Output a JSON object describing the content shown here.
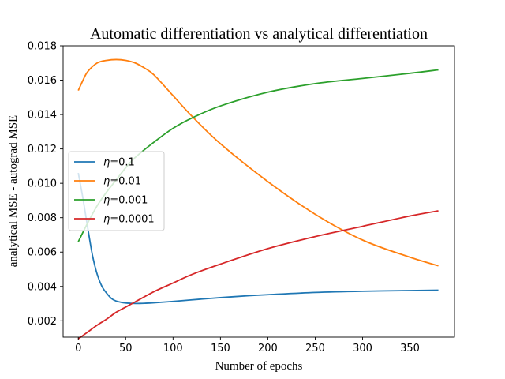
{
  "chart_data": {
    "type": "line",
    "title": "Automatic differentiation vs analytical differentiation",
    "xlabel": "Number of epochs",
    "ylabel": "analytical MSE - autograd MSE",
    "xlim": [
      -16,
      397
    ],
    "ylim": [
      0.00105,
      0.018
    ],
    "xticks": [
      0,
      50,
      100,
      150,
      200,
      250,
      300,
      350
    ],
    "xtick_labels": [
      "0",
      "50",
      "100",
      "150",
      "200",
      "250",
      "300",
      "350"
    ],
    "yticks": [
      0.002,
      0.004,
      0.006,
      0.008,
      0.01,
      0.012,
      0.014,
      0.016,
      0.018
    ],
    "ytick_labels": [
      "0.002",
      "0.004",
      "0.006",
      "0.008",
      "0.010",
      "0.012",
      "0.014",
      "0.016",
      "0.018"
    ],
    "grid": false,
    "legend_position": "center-left",
    "series": [
      {
        "name": "η=0.1",
        "eta_symbol": "η",
        "eta_value": "=0.1",
        "color": "#1f77b4",
        "x": [
          0,
          5,
          10,
          15,
          20,
          25,
          30,
          35,
          40,
          45,
          50,
          55,
          60,
          65,
          70,
          80,
          100,
          120,
          150,
          180,
          200,
          250,
          300,
          350,
          380
        ],
        "y": [
          0.0106,
          0.0091,
          0.0074,
          0.0058,
          0.0047,
          0.004,
          0.0036,
          0.0033,
          0.00315,
          0.00308,
          0.00304,
          0.00302,
          0.00301,
          0.00301,
          0.00302,
          0.00305,
          0.00313,
          0.00322,
          0.00335,
          0.00346,
          0.00352,
          0.00365,
          0.00372,
          0.00376,
          0.00378
        ]
      },
      {
        "name": "η=0.01",
        "eta_symbol": "η",
        "eta_value": "=0.01",
        "color": "#ff7f0e",
        "x": [
          0,
          5,
          10,
          20,
          30,
          40,
          50,
          60,
          70,
          80,
          100,
          120,
          150,
          200,
          250,
          300,
          350,
          380
        ],
        "y": [
          0.0154,
          0.016,
          0.0165,
          0.017,
          0.01715,
          0.0172,
          0.01715,
          0.017,
          0.0167,
          0.0163,
          0.0151,
          0.0139,
          0.0123,
          0.0101,
          0.0082,
          0.0067,
          0.0057,
          0.0052
        ]
      },
      {
        "name": "η=0.001",
        "eta_symbol": "η",
        "eta_value": "=0.001",
        "color": "#2ca02c",
        "x": [
          0,
          10,
          20,
          30,
          40,
          50,
          60,
          80,
          100,
          120,
          150,
          200,
          250,
          300,
          350,
          380
        ],
        "y": [
          0.0066,
          0.0077,
          0.0087,
          0.0095,
          0.0102,
          0.0109,
          0.0115,
          0.0124,
          0.0132,
          0.0138,
          0.0145,
          0.0153,
          0.0158,
          0.0161,
          0.0164,
          0.0166
        ]
      },
      {
        "name": "η=0.0001",
        "eta_symbol": "η",
        "eta_value": "=0.0001",
        "color": "#d62728",
        "x": [
          0,
          10,
          20,
          30,
          40,
          50,
          60,
          80,
          100,
          120,
          150,
          200,
          250,
          300,
          350,
          380
        ],
        "y": [
          0.00095,
          0.00135,
          0.00175,
          0.0021,
          0.0025,
          0.0028,
          0.0031,
          0.0037,
          0.0042,
          0.0047,
          0.0053,
          0.0062,
          0.0069,
          0.0075,
          0.0081,
          0.0084
        ]
      }
    ]
  }
}
